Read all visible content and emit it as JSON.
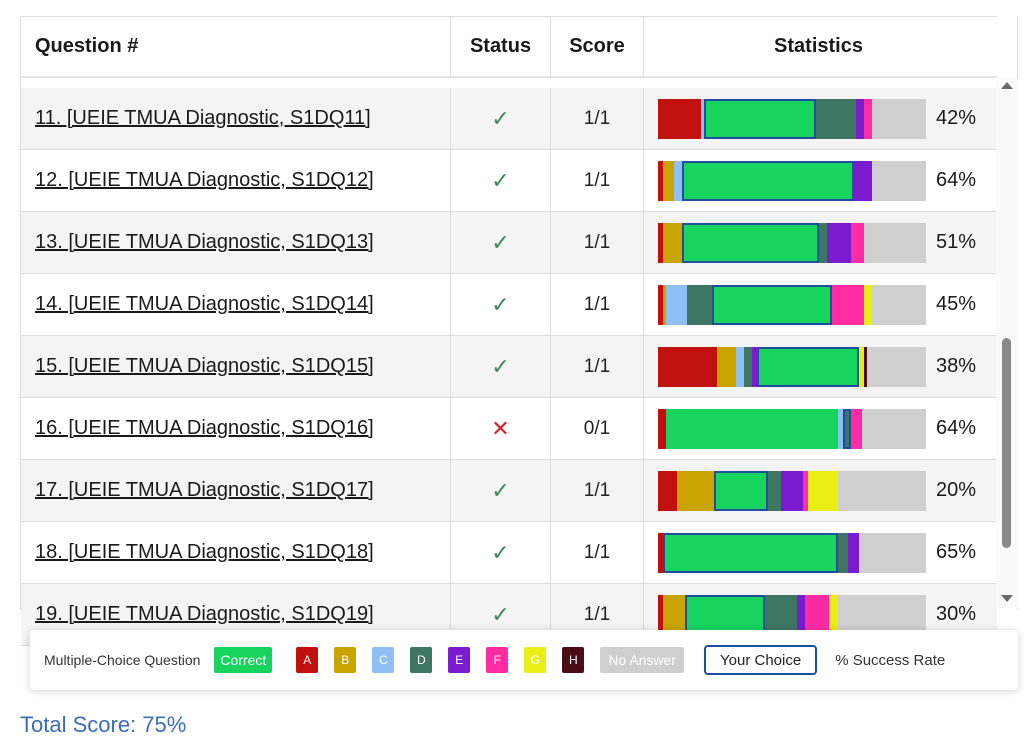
{
  "header": {
    "question": "Question #",
    "status": "Status",
    "score": "Score",
    "statistics": "Statistics"
  },
  "rows": [
    {
      "label": "11. [UEIE TMUA Diagnostic, S1DQ11]",
      "status": "correct",
      "score": "1/1",
      "pct": "42%",
      "segments": [
        [
          "A",
          0.16
        ],
        [
          "C",
          0.01
        ],
        [
          "Correct",
          0.42,
          true
        ],
        [
          "D",
          0.15
        ],
        [
          "E",
          0.03
        ],
        [
          "F",
          0.03
        ],
        [
          "none",
          0.2
        ]
      ]
    },
    {
      "label": "12. [UEIE TMUA Diagnostic, S1DQ12]",
      "status": "correct",
      "score": "1/1",
      "pct": "64%",
      "segments": [
        [
          "A",
          0.02
        ],
        [
          "B",
          0.04
        ],
        [
          "C",
          0.03
        ],
        [
          "Correct",
          0.64,
          true
        ],
        [
          "E",
          0.07
        ],
        [
          "none",
          0.2
        ]
      ]
    },
    {
      "label": "13. [UEIE TMUA Diagnostic, S1DQ13]",
      "status": "correct",
      "score": "1/1",
      "pct": "51%",
      "segments": [
        [
          "A",
          0.02
        ],
        [
          "B",
          0.07
        ],
        [
          "Correct",
          0.51,
          true
        ],
        [
          "D",
          0.03
        ],
        [
          "E",
          0.09
        ],
        [
          "F",
          0.05
        ],
        [
          "none",
          0.23
        ]
      ]
    },
    {
      "label": "14. [UEIE TMUA Diagnostic, S1DQ14]",
      "status": "correct",
      "score": "1/1",
      "pct": "45%",
      "segments": [
        [
          "A",
          0.02
        ],
        [
          "B",
          0.01
        ],
        [
          "C",
          0.08
        ],
        [
          "D",
          0.09
        ],
        [
          "Correct",
          0.45,
          true
        ],
        [
          "F",
          0.12
        ],
        [
          "G",
          0.03
        ],
        [
          "none",
          0.2
        ]
      ]
    },
    {
      "label": "15. [UEIE TMUA Diagnostic, S1DQ15]",
      "status": "correct",
      "score": "1/1",
      "pct": "38%",
      "segments": [
        [
          "A",
          0.22
        ],
        [
          "B",
          0.07
        ],
        [
          "C",
          0.03
        ],
        [
          "D",
          0.03
        ],
        [
          "E",
          0.02
        ],
        [
          "Correct",
          0.38,
          true
        ],
        [
          "G",
          0.02
        ],
        [
          "H",
          0.01
        ],
        [
          "none",
          0.22
        ]
      ]
    },
    {
      "label": "16. [UEIE TMUA Diagnostic, S1DQ16]",
      "status": "incorrect",
      "score": "0/1",
      "pct": "64%",
      "segments": [
        [
          "A",
          0.03
        ],
        [
          "Correct",
          0.64
        ],
        [
          "C",
          0.02
        ],
        [
          "D",
          0.03,
          true
        ],
        [
          "F",
          0.04
        ],
        [
          "none",
          0.24
        ]
      ]
    },
    {
      "label": "17. [UEIE TMUA Diagnostic, S1DQ17]",
      "status": "correct",
      "score": "1/1",
      "pct": "20%",
      "segments": [
        [
          "A",
          0.07
        ],
        [
          "B",
          0.14
        ],
        [
          "Correct",
          0.2,
          true
        ],
        [
          "D",
          0.05
        ],
        [
          "E",
          0.08
        ],
        [
          "F",
          0.02
        ],
        [
          "G",
          0.11
        ],
        [
          "none",
          0.33
        ]
      ]
    },
    {
      "label": "18. [UEIE TMUA Diagnostic, S1DQ18]",
      "status": "correct",
      "score": "1/1",
      "pct": "65%",
      "segments": [
        [
          "A",
          0.02
        ],
        [
          "Correct",
          0.65,
          true
        ],
        [
          "D",
          0.04
        ],
        [
          "E",
          0.04
        ],
        [
          "none",
          0.25
        ]
      ]
    },
    {
      "label": "19. [UEIE TMUA Diagnostic, S1DQ19]",
      "status": "correct",
      "score": "1/1",
      "pct": "30%",
      "segments": [
        [
          "A",
          0.02
        ],
        [
          "B",
          0.08
        ],
        [
          "Correct",
          0.3,
          true
        ],
        [
          "D",
          0.12
        ],
        [
          "E",
          0.03
        ],
        [
          "F",
          0.09
        ],
        [
          "G",
          0.03
        ],
        [
          "none",
          0.3
        ]
      ]
    }
  ],
  "colors": {
    "Correct": "#17d45f",
    "A": "#c1110e",
    "B": "#c8a400",
    "C": "#8ec0f5",
    "D": "#3e7563",
    "E": "#7a1bd0",
    "F": "#ff2ba3",
    "G": "#e9ef14",
    "H": "#4a0d17",
    "none": "#cfcfcf"
  },
  "icons": {
    "correct": "✓",
    "incorrect": "✕"
  },
  "legend": {
    "title": "Multiple-Choice Question",
    "correct": "Correct",
    "letters": [
      "A",
      "B",
      "C",
      "D",
      "E",
      "F",
      "G",
      "H"
    ],
    "no_answer": "No Answer",
    "your_choice": "Your Choice",
    "success_rate": "% Success Rate"
  },
  "total_score": "Total Score:  75%"
}
